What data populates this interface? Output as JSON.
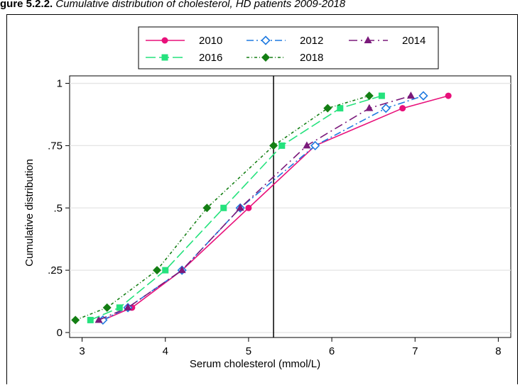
{
  "caption": {
    "lead": "gure 5.2.2.",
    "text": " Cumulative distribution of cholesterol, HD patients 2009-2018"
  },
  "chart_data": {
    "type": "line",
    "xlabel": "Serum cholesterol (mmol/L)",
    "ylabel": "Cumulative distribution",
    "xlim": [
      2.85,
      8.15
    ],
    "ylim": [
      -0.02,
      1.03
    ],
    "x_ticks": [
      3,
      4,
      5,
      6,
      7,
      8
    ],
    "x_tick_labels": [
      "3",
      "4",
      "5",
      "6",
      "7",
      "8"
    ],
    "y_ticks": [
      0,
      0.25,
      0.5,
      0.75,
      1
    ],
    "y_tick_labels": [
      "0",
      ".25",
      ".5",
      ".75",
      "1"
    ],
    "grid": true,
    "reference_line_x": 5.3,
    "legend_position": "top-center",
    "series": [
      {
        "name": "2010",
        "color": "#e8107a",
        "marker": "circle",
        "dash": "",
        "x": [
          3.25,
          3.6,
          4.2,
          5.0,
          5.8,
          6.85,
          7.4
        ],
        "y": [
          0.05,
          0.1,
          0.25,
          0.5,
          0.75,
          0.9,
          0.95
        ]
      },
      {
        "name": "2012",
        "color": "#1f7ae0",
        "marker": "diamond-open",
        "dash": "10,4,2,4",
        "x": [
          3.25,
          3.55,
          4.2,
          4.9,
          5.8,
          6.65,
          7.1
        ],
        "y": [
          0.05,
          0.1,
          0.25,
          0.5,
          0.75,
          0.9,
          0.95
        ]
      },
      {
        "name": "2014",
        "color": "#7b1a7b",
        "marker": "triangle",
        "dash": "12,5,2,5",
        "x": [
          3.2,
          3.55,
          4.2,
          4.9,
          5.7,
          6.45,
          6.95
        ],
        "y": [
          0.05,
          0.1,
          0.25,
          0.5,
          0.75,
          0.9,
          0.95
        ]
      },
      {
        "name": "2016",
        "color": "#25e27d",
        "marker": "square",
        "dash": "14,5",
        "x": [
          3.1,
          3.45,
          4.0,
          4.7,
          5.4,
          6.1,
          6.6
        ],
        "y": [
          0.05,
          0.1,
          0.25,
          0.5,
          0.75,
          0.9,
          0.95
        ]
      },
      {
        "name": "2018",
        "color": "#137e13",
        "marker": "diamond",
        "dash": "4,3,1,3",
        "x": [
          2.92,
          3.3,
          3.9,
          4.5,
          5.3,
          5.95,
          6.45
        ],
        "y": [
          0.05,
          0.1,
          0.25,
          0.5,
          0.75,
          0.9,
          0.95
        ]
      }
    ]
  }
}
